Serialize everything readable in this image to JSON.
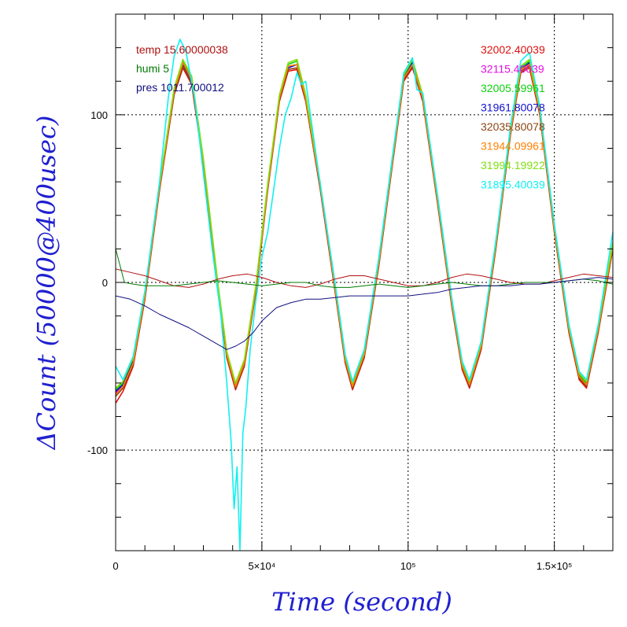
{
  "chart_data": {
    "type": "line",
    "xlabel": "Time (second)",
    "ylabel": "ΔCount (50000@400usec)",
    "xlim": [
      0,
      170000
    ],
    "ylim": [
      -160,
      160
    ],
    "grid": true,
    "legend_placement": "top",
    "x_ticks": [
      {
        "value": 0,
        "label": "0"
      },
      {
        "value": 50000,
        "label": "5×10⁴"
      },
      {
        "value": 100000,
        "label": "10⁵"
      },
      {
        "value": 150000,
        "label": "1.5×10⁵"
      }
    ],
    "y_ticks": [
      {
        "value": -100,
        "label": "-100"
      },
      {
        "value": 0,
        "label": "0"
      },
      {
        "value": 100,
        "label": "100"
      }
    ],
    "legend_left": [
      {
        "text": "temp 15.60000038",
        "color": "#b01010"
      },
      {
        "text": "humi 5",
        "color": "#007a00"
      },
      {
        "text": "pres 1011.700012",
        "color": "#101080"
      }
    ],
    "legend_right": [
      {
        "text": "32002.40039",
        "color": "#e01010"
      },
      {
        "text": "32115.40039",
        "color": "#e010e0"
      },
      {
        "text": "32005.59961",
        "color": "#10d010"
      },
      {
        "text": "31961.80078",
        "color": "#1010d0"
      },
      {
        "text": "32035.80078",
        "color": "#8b4513"
      },
      {
        "text": "31944.09961",
        "color": "#ff8000"
      },
      {
        "text": "31994.19922",
        "color": "#80e010"
      },
      {
        "text": "31895.40039",
        "color": "#10f0f0"
      }
    ],
    "series": [
      {
        "name": "32002.40039",
        "color": "#e01010",
        "x": [
          0,
          2500,
          6000,
          10000,
          15000,
          20000,
          23000,
          26000,
          30000,
          35000,
          38000,
          41000,
          44000,
          48000,
          52000,
          56000,
          59000,
          62000,
          65000,
          70000,
          75000,
          78500,
          81000,
          85000,
          90000,
          95000,
          98500,
          101500,
          105000,
          110000,
          115000,
          118500,
          121000,
          125000,
          130000,
          135000,
          138500,
          141500,
          145000,
          150000,
          155000,
          158500,
          161000,
          165000,
          170000
        ],
        "y": [
          -72,
          -65,
          -50,
          -10,
          55,
          112,
          128,
          118,
          70,
          -5,
          -45,
          -64,
          -50,
          -5,
          55,
          108,
          126,
          127,
          108,
          55,
          -5,
          -48,
          -64,
          -45,
          10,
          75,
          120,
          128,
          108,
          48,
          -15,
          -52,
          -63,
          -40,
          20,
          88,
          125,
          128,
          100,
          30,
          -30,
          -58,
          -63,
          -30,
          20
        ]
      },
      {
        "name": "32115.40039",
        "color": "#e010e0",
        "x": [
          0,
          2500,
          6000,
          10000,
          15000,
          20000,
          23000,
          26000,
          30000,
          35000,
          38000,
          41000,
          44000,
          48000,
          52000,
          56000,
          59000,
          62000,
          65000,
          70000,
          75000,
          78500,
          81000,
          85000,
          90000,
          95000,
          98500,
          101500,
          105000,
          110000,
          115000,
          118500,
          121000,
          125000,
          130000,
          135000,
          138500,
          141500,
          145000,
          150000,
          155000,
          158500,
          161000,
          165000,
          170000
        ],
        "y": [
          -66,
          -61,
          -47,
          -8,
          57,
          114,
          130,
          120,
          72,
          -3,
          -43,
          -62,
          -48,
          -3,
          57,
          110,
          128,
          130,
          110,
          57,
          -3,
          -46,
          -62,
          -43,
          12,
          77,
          122,
          130,
          110,
          50,
          -13,
          -50,
          -61,
          -38,
          22,
          90,
          127,
          130,
          102,
          32,
          -28,
          -56,
          -61,
          -28,
          22
        ]
      },
      {
        "name": "32005.59961",
        "color": "#10d010",
        "x": [
          0,
          2500,
          6000,
          10000,
          15000,
          20000,
          23000,
          26000,
          30000,
          35000,
          38000,
          41000,
          44000,
          48000,
          52000,
          56000,
          59000,
          62000,
          65000,
          70000,
          75000,
          78500,
          81000,
          85000,
          90000,
          95000,
          98500,
          101500,
          105000,
          110000,
          115000,
          118500,
          121000,
          125000,
          130000,
          135000,
          138500,
          141500,
          145000,
          150000,
          155000,
          158500,
          161000,
          165000,
          170000
        ],
        "y": [
          -64,
          -60,
          -46,
          -7,
          58,
          115,
          132,
          122,
          73,
          -2,
          -42,
          -61,
          -47,
          -2,
          58,
          111,
          130,
          132,
          111,
          58,
          -2,
          -45,
          -61,
          -42,
          13,
          78,
          123,
          132,
          111,
          51,
          -12,
          -49,
          -60,
          -37,
          23,
          91,
          128,
          132,
          103,
          33,
          -27,
          -55,
          -60,
          -27,
          23
        ]
      },
      {
        "name": "31961.80078",
        "color": "#1010d0",
        "x": [
          0,
          2500,
          6000,
          10000,
          15000,
          20000,
          23000,
          26000,
          30000,
          35000,
          38000,
          41000,
          44000,
          48000,
          52000,
          56000,
          59000,
          62000,
          65000,
          70000,
          75000,
          78500,
          81000,
          85000,
          90000,
          95000,
          98500,
          101500,
          105000,
          110000,
          115000,
          118500,
          121000,
          125000,
          130000,
          135000,
          138500,
          141500,
          145000,
          150000,
          155000,
          158500,
          161000,
          165000,
          170000
        ],
        "y": [
          -65,
          -61,
          -47,
          -8,
          57,
          113,
          130,
          121,
          72,
          -3,
          -43,
          -62,
          -48,
          -3,
          57,
          110,
          128,
          130,
          110,
          57,
          -3,
          -46,
          -62,
          -43,
          12,
          77,
          122,
          131,
          110,
          50,
          -13,
          -50,
          -61,
          -38,
          22,
          90,
          127,
          131,
          102,
          32,
          -28,
          -56,
          -61,
          -28,
          22
        ]
      },
      {
        "name": "32035.80078",
        "color": "#8b4513",
        "x": [
          0,
          2500,
          6000,
          10000,
          15000,
          20000,
          23000,
          26000,
          30000,
          35000,
          38000,
          41000,
          44000,
          48000,
          52000,
          56000,
          59000,
          62000,
          65000,
          70000,
          75000,
          78500,
          81000,
          85000,
          90000,
          95000,
          98500,
          101500,
          105000,
          110000,
          115000,
          118500,
          121000,
          125000,
          130000,
          135000,
          138500,
          141500,
          145000,
          150000,
          155000,
          158500,
          161000,
          165000,
          170000
        ],
        "y": [
          -68,
          -63,
          -49,
          -9,
          56,
          113,
          129,
          119,
          71,
          -4,
          -44,
          -63,
          -49,
          -4,
          56,
          109,
          127,
          128,
          109,
          56,
          -4,
          -47,
          -63,
          -44,
          11,
          76,
          121,
          129,
          109,
          49,
          -14,
          -51,
          -62,
          -39,
          21,
          89,
          126,
          129,
          101,
          31,
          -29,
          -57,
          -62,
          -29,
          21
        ]
      },
      {
        "name": "31944.09961",
        "color": "#ff8000",
        "x": [
          0,
          2500,
          6000,
          10000,
          15000,
          20000,
          23000,
          26000,
          30000,
          35000,
          38000,
          41000,
          44000,
          48000,
          52000,
          56000,
          59000,
          62000,
          65000,
          70000,
          75000,
          78500,
          81000,
          85000,
          90000,
          95000,
          98500,
          101500,
          105000,
          110000,
          115000,
          118500,
          121000,
          125000,
          130000,
          135000,
          138500,
          141500,
          145000,
          150000,
          155000,
          158500,
          161000,
          165000,
          170000
        ],
        "y": [
          -67,
          -62,
          -48,
          -8,
          57,
          114,
          131,
          121,
          72,
          -3,
          -43,
          -62,
          -48,
          -3,
          57,
          110,
          129,
          130,
          110,
          57,
          -3,
          -46,
          -62,
          -43,
          12,
          77,
          122,
          130,
          110,
          50,
          -13,
          -50,
          -61,
          -38,
          22,
          90,
          127,
          130,
          102,
          32,
          -28,
          -56,
          -61,
          -28,
          22
        ]
      },
      {
        "name": "31994.19922",
        "color": "#80e010",
        "x": [
          0,
          2500,
          6000,
          10000,
          15000,
          20000,
          23000,
          26000,
          30000,
          35000,
          38000,
          41000,
          44000,
          48000,
          52000,
          56000,
          59000,
          62000,
          65000,
          70000,
          75000,
          78500,
          81000,
          85000,
          90000,
          95000,
          98500,
          101500,
          105000,
          110000,
          115000,
          118500,
          121000,
          125000,
          130000,
          135000,
          138500,
          141500,
          145000,
          150000,
          155000,
          158500,
          161000,
          165000,
          170000
        ],
        "y": [
          -63,
          -59,
          -45,
          -6,
          59,
          116,
          133,
          123,
          74,
          -1,
          -41,
          -60,
          -46,
          -1,
          59,
          112,
          131,
          133,
          112,
          59,
          -1,
          -44,
          -60,
          -41,
          14,
          79,
          124,
          133,
          112,
          52,
          -11,
          -48,
          -59,
          -36,
          24,
          92,
          129,
          133,
          104,
          34,
          -26,
          -54,
          -59,
          -26,
          24
        ]
      },
      {
        "name": "31895.40039",
        "color": "#10f0f0",
        "x": [
          0,
          2500,
          6000,
          10000,
          15000,
          18000,
          20000,
          22000,
          24000,
          27000,
          30000,
          33000,
          36000,
          38000,
          39500,
          40500,
          41500,
          42500,
          43500,
          44500,
          46000,
          48000,
          50000,
          52000,
          54000,
          56000,
          58000,
          60000,
          62000,
          63500,
          65000,
          70000,
          75000,
          78500,
          81000,
          85000,
          90000,
          95000,
          98500,
          101500,
          103000,
          105000,
          110000,
          115000,
          118500,
          121000,
          125000,
          130000,
          135000,
          138500,
          141500,
          145000,
          150000,
          155000,
          158500,
          161000,
          165000,
          170000
        ],
        "y": [
          -50,
          -58,
          -44,
          -5,
          60,
          110,
          135,
          145,
          138,
          110,
          65,
          20,
          -20,
          -60,
          -95,
          -135,
          -110,
          -160,
          -90,
          -75,
          -40,
          -10,
          15,
          30,
          55,
          80,
          100,
          110,
          125,
          118,
          120,
          58,
          0,
          -43,
          -59,
          -40,
          15,
          80,
          125,
          134,
          115,
          113,
          53,
          -10,
          -47,
          -58,
          -35,
          25,
          93,
          132,
          137,
          105,
          35,
          -25,
          -53,
          -58,
          -25,
          30
        ]
      },
      {
        "name": "temp 15.60000038",
        "color": "#b01010",
        "x": [
          0,
          5000,
          10000,
          15000,
          20000,
          25000,
          30000,
          35000,
          40000,
          45000,
          50000,
          55000,
          60000,
          65000,
          70000,
          75000,
          80000,
          85000,
          90000,
          95000,
          100000,
          105000,
          110000,
          115000,
          120000,
          125000,
          130000,
          135000,
          140000,
          145000,
          150000,
          155000,
          160000,
          165000,
          170000
        ],
        "y": [
          8,
          6,
          4,
          1,
          -2,
          -3,
          -1,
          2,
          4,
          5,
          3,
          0,
          -2,
          -3,
          -1,
          2,
          4,
          4,
          2,
          0,
          -2,
          -2,
          0,
          3,
          5,
          4,
          2,
          0,
          -1,
          -1,
          1,
          3,
          5,
          4,
          3
        ]
      },
      {
        "name": "humi 5",
        "color": "#007a00",
        "x": [
          0,
          3000,
          6000,
          10000,
          15000,
          20000,
          25000,
          30000,
          35000,
          40000,
          45000,
          50000,
          55000,
          60000,
          65000,
          70000,
          75000,
          80000,
          85000,
          90000,
          95000,
          100000,
          105000,
          110000,
          115000,
          120000,
          125000,
          130000,
          135000,
          140000,
          145000,
          150000,
          155000,
          160000,
          165000,
          170000
        ],
        "y": [
          20,
          0,
          -1,
          -2,
          -2,
          -2,
          -1,
          0,
          1,
          0,
          -1,
          -2,
          -1,
          0,
          0,
          -2,
          -3,
          -3,
          -2,
          -1,
          -2,
          -3,
          -2,
          -1,
          0,
          -1,
          -2,
          -2,
          -1,
          0,
          0,
          0,
          1,
          2,
          1,
          -1
        ]
      },
      {
        "name": "pres 1011.700012",
        "color": "#101080",
        "x": [
          0,
          5000,
          10000,
          15000,
          20000,
          25000,
          30000,
          35000,
          38000,
          41000,
          44000,
          47000,
          50000,
          55000,
          60000,
          65000,
          70000,
          75000,
          80000,
          85000,
          90000,
          95000,
          100000,
          105000,
          110000,
          115000,
          120000,
          125000,
          130000,
          135000,
          140000,
          145000,
          150000,
          155000,
          160000,
          165000,
          170000
        ],
        "y": [
          -8,
          -10,
          -14,
          -19,
          -23,
          -27,
          -32,
          -37,
          -40,
          -38,
          -35,
          -30,
          -23,
          -15,
          -12,
          -10,
          -10,
          -9,
          -8,
          -8,
          -8,
          -8,
          -8,
          -7,
          -6,
          -4,
          -3,
          -2,
          -2,
          -2,
          -1,
          -1,
          0,
          1,
          2,
          3,
          2
        ]
      }
    ]
  }
}
